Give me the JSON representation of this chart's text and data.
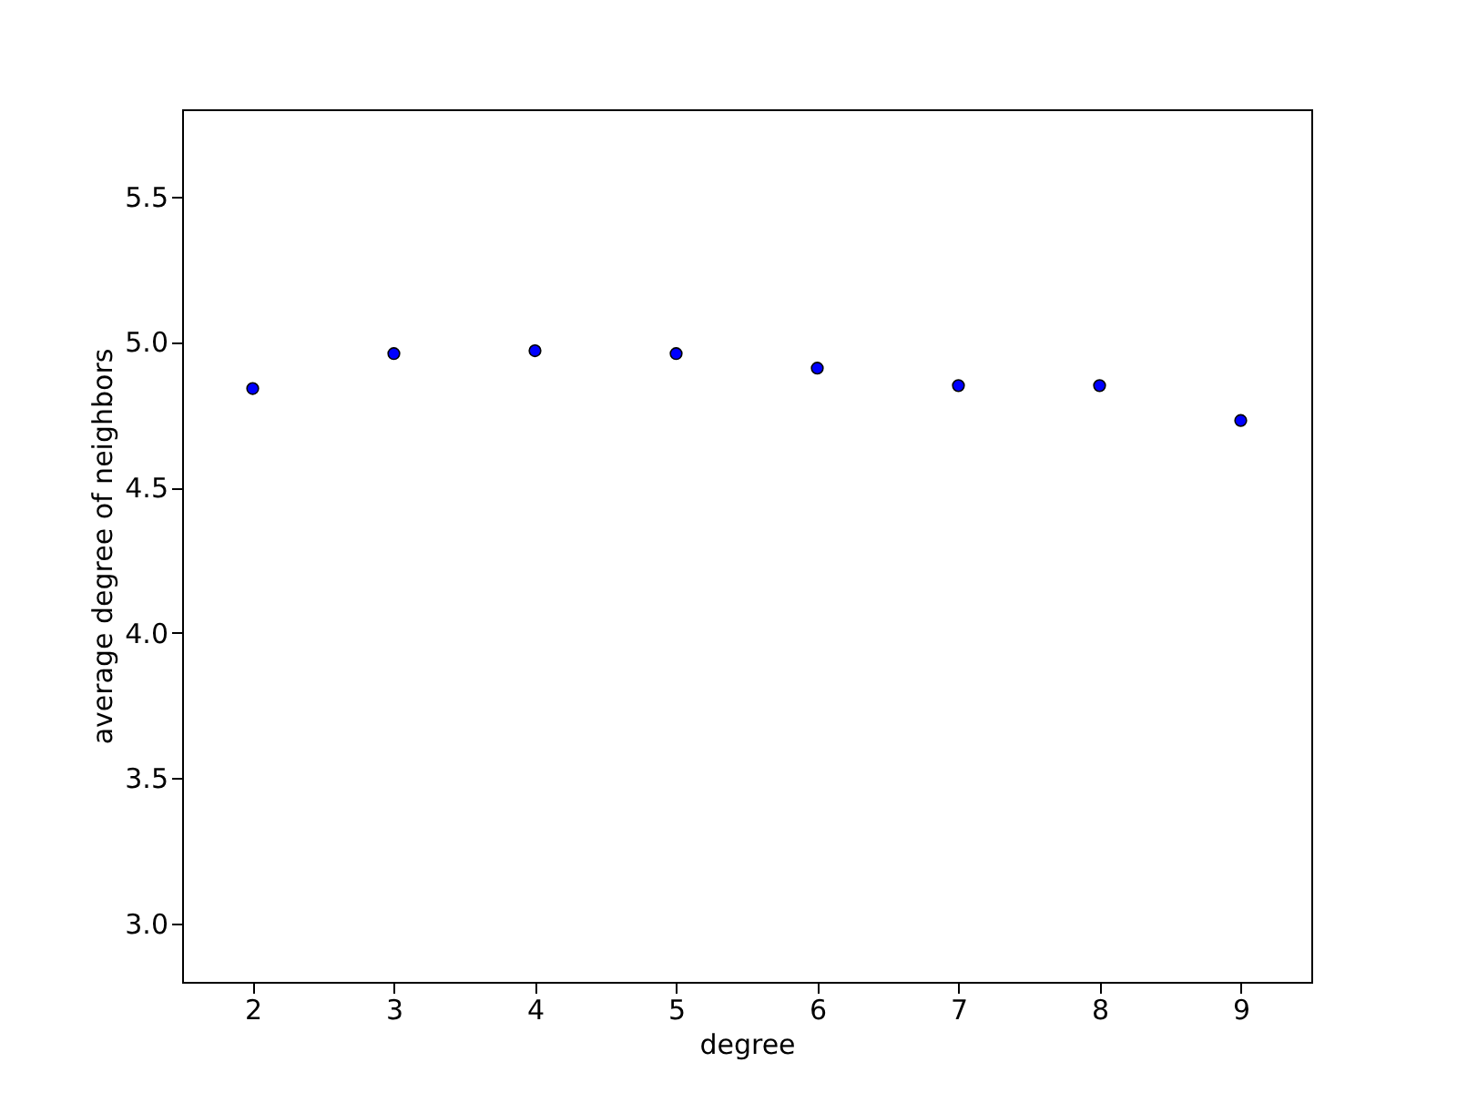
{
  "chart_data": {
    "type": "scatter",
    "xlabel": "degree",
    "ylabel": "average degree of neighbors",
    "x": [
      2,
      3,
      4,
      5,
      6,
      7,
      8,
      9
    ],
    "series": [
      {
        "color": "#0000ff",
        "values": [
          4.84,
          4.96,
          4.97,
          4.96,
          4.91,
          4.85,
          4.85,
          4.73
        ]
      }
    ],
    "xlim": [
      1.5,
      9.5
    ],
    "xticks": [
      2,
      3,
      4,
      5,
      6,
      7,
      8,
      9
    ],
    "ylim": [
      2.8,
      5.8
    ],
    "yticks": [
      {
        "value": 3,
        "label": "3.0"
      },
      3.5,
      {
        "value": 4,
        "label": "4.0"
      },
      4.5,
      {
        "value": 5,
        "label": "5.0"
      },
      5.5
    ],
    "marker": "circle",
    "grid": false,
    "legend": false
  }
}
